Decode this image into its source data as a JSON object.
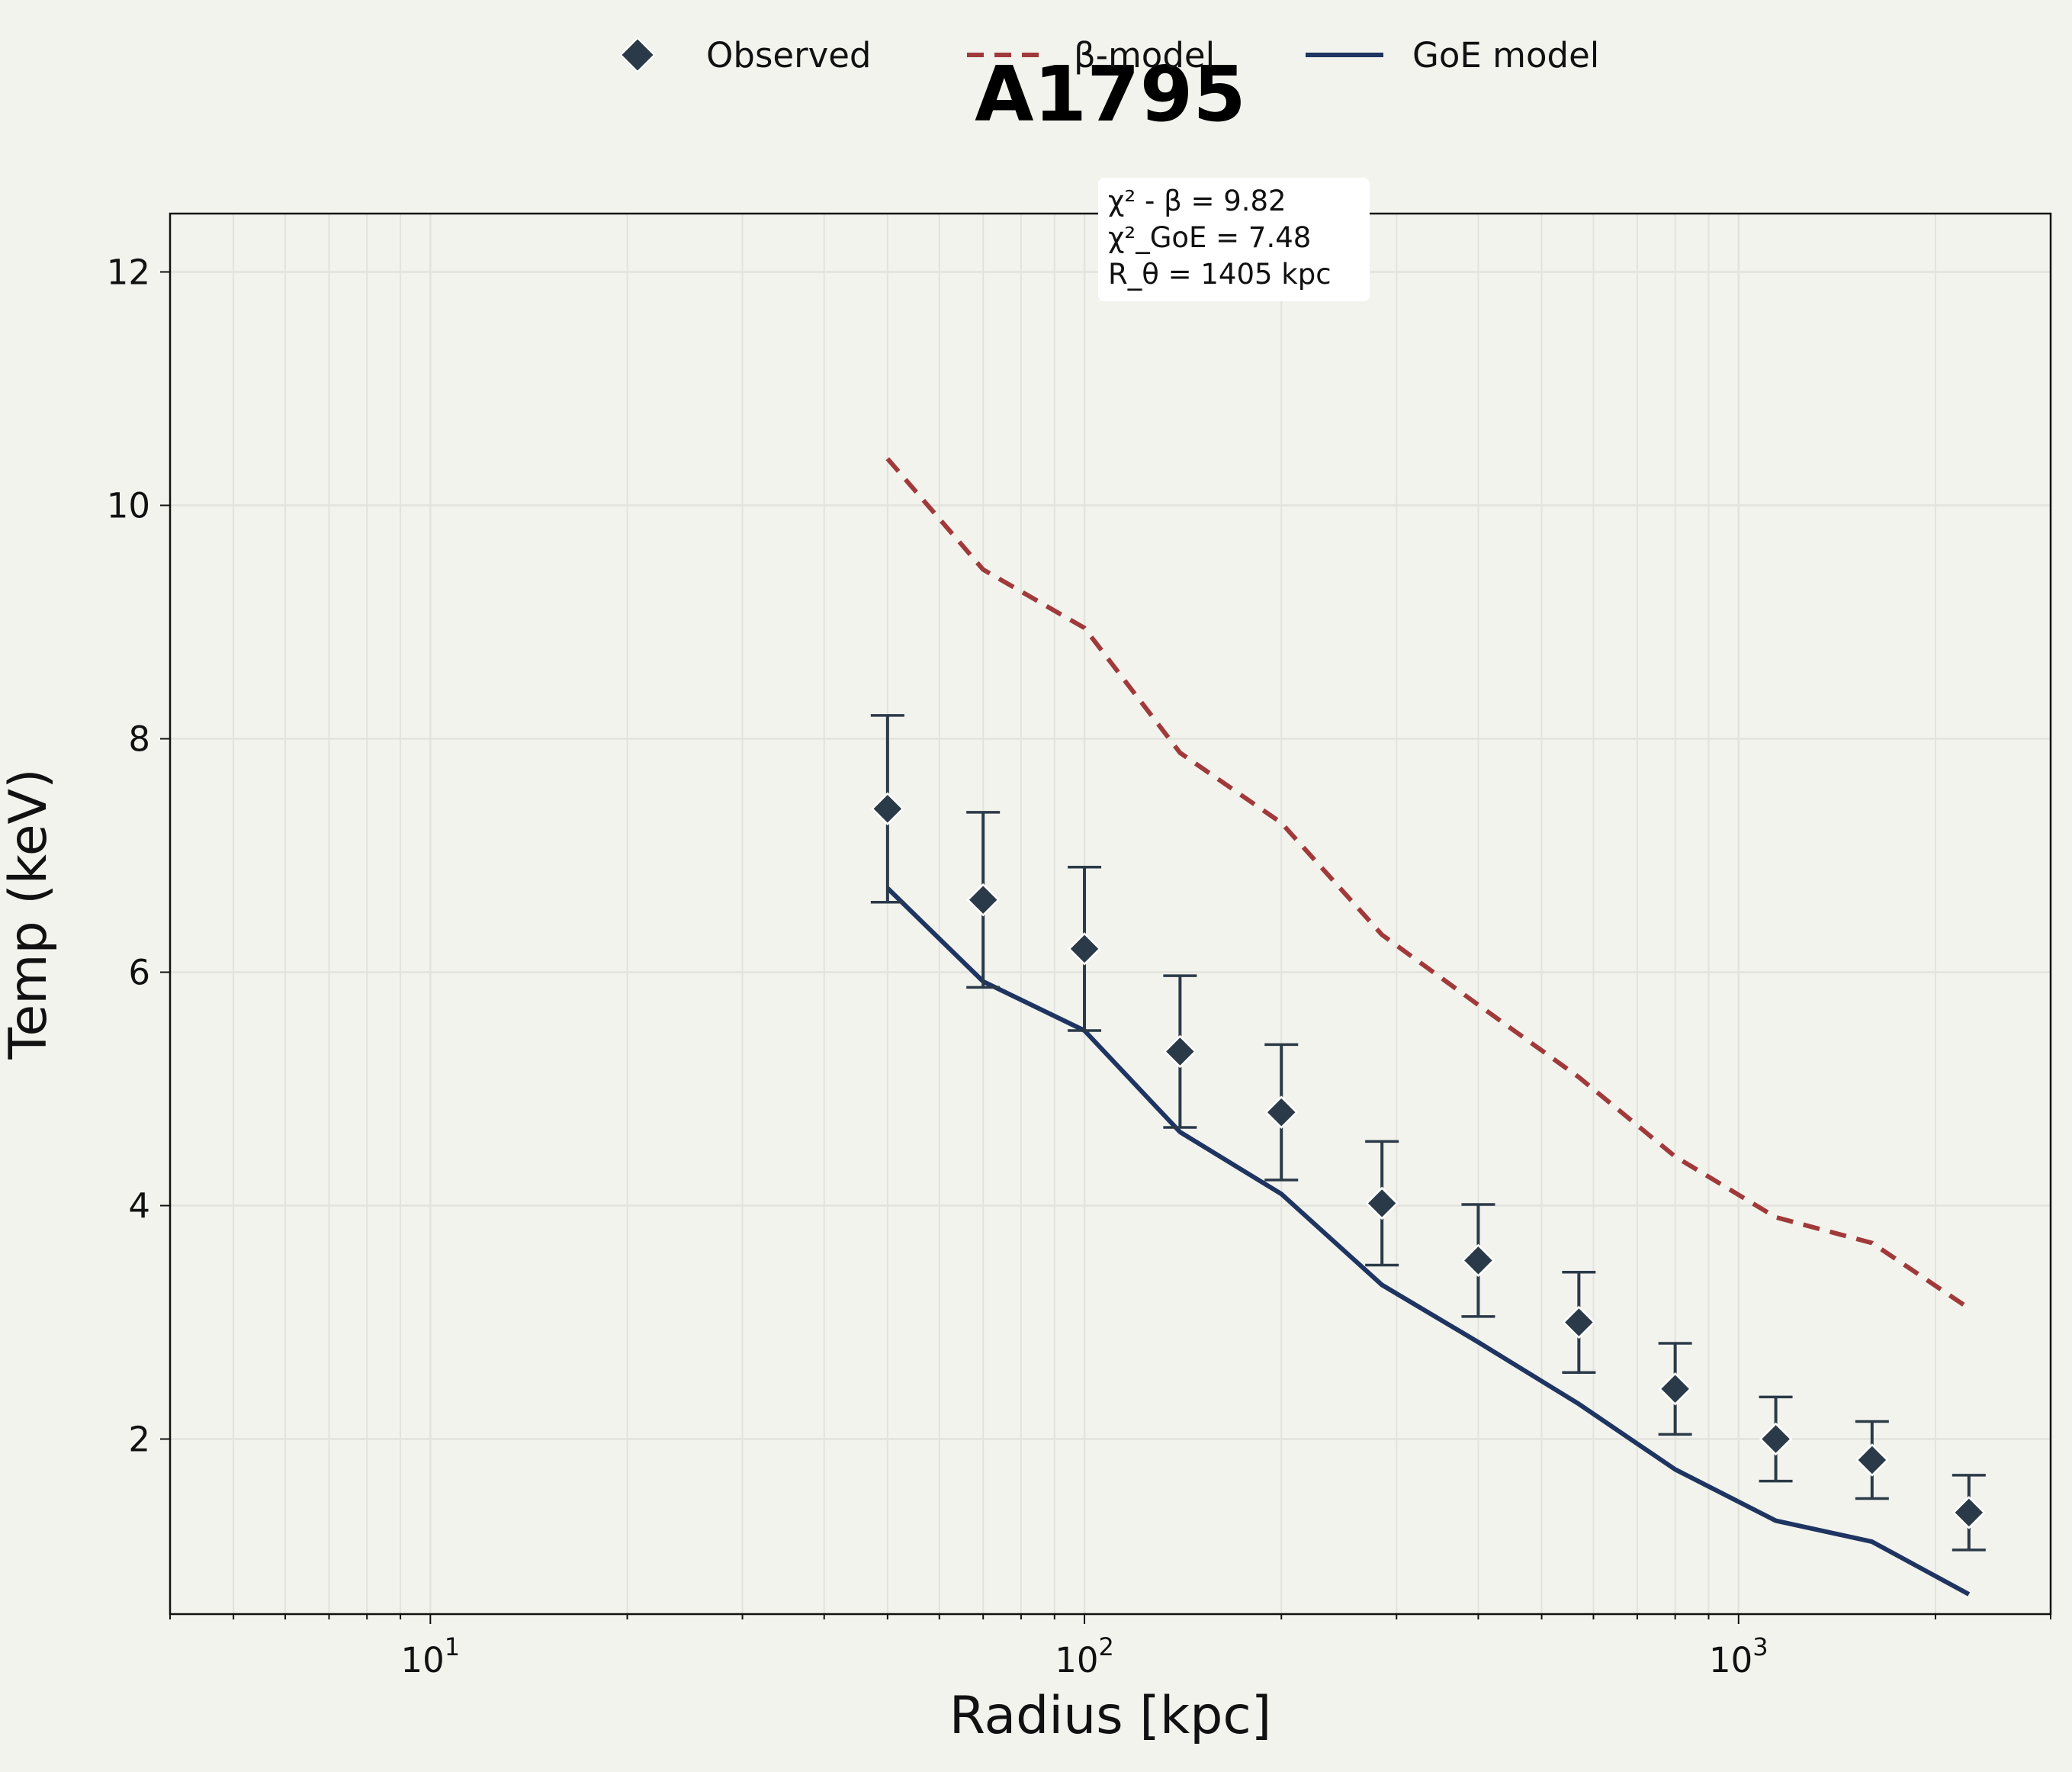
{
  "chart_data": {
    "type": "line",
    "title": "A1795",
    "xlabel": "Radius [kpc]",
    "ylabel": "Temp (keV)",
    "xscale": "log",
    "xlim": [
      4,
      3000
    ],
    "ylim": [
      0.5,
      12.5
    ],
    "grid": true,
    "legend_position": "top-center",
    "x_ticks": [
      {
        "value": 10,
        "base": "10",
        "exp": "1"
      },
      {
        "value": 100,
        "base": "10",
        "exp": "2"
      },
      {
        "value": 1000,
        "base": "10",
        "exp": "3"
      }
    ],
    "y_ticks": [
      2,
      4,
      6,
      8,
      10,
      12
    ],
    "observed": {
      "name": "Observed",
      "color": "#2b3a48",
      "x": [
        50,
        70,
        100,
        140,
        200,
        285,
        400,
        570,
        800,
        1140,
        1600,
        2250
      ],
      "y": [
        7.4,
        6.62,
        6.2,
        5.32,
        4.8,
        4.02,
        3.53,
        3.0,
        2.43,
        2.0,
        1.82,
        1.37
      ],
      "err": [
        0.8,
        0.75,
        0.7,
        0.65,
        0.58,
        0.53,
        0.48,
        0.43,
        0.39,
        0.36,
        0.33,
        0.32
      ]
    },
    "series": [
      {
        "name": "β-model",
        "style": "dashed",
        "color": "#a03a3a",
        "x": [
          50,
          70,
          100,
          140,
          200,
          285,
          400,
          570,
          800,
          1140,
          1600,
          2250
        ],
        "y": [
          10.4,
          9.45,
          8.95,
          7.88,
          7.28,
          6.32,
          5.72,
          5.1,
          4.42,
          3.9,
          3.68,
          3.12
        ]
      },
      {
        "name": "GoE model",
        "style": "solid",
        "color": "#1e3461",
        "x": [
          50,
          70,
          100,
          140,
          200,
          285,
          400,
          570,
          800,
          1140,
          1600,
          2250
        ],
        "y": [
          6.72,
          5.92,
          5.5,
          4.63,
          4.1,
          3.32,
          2.83,
          2.3,
          1.74,
          1.3,
          1.12,
          0.67
        ]
      }
    ],
    "annotation": [
      "χ² - β = 9.82",
      "χ²_GoE = 7.48",
      "R_θ = 1405 kpc"
    ]
  }
}
